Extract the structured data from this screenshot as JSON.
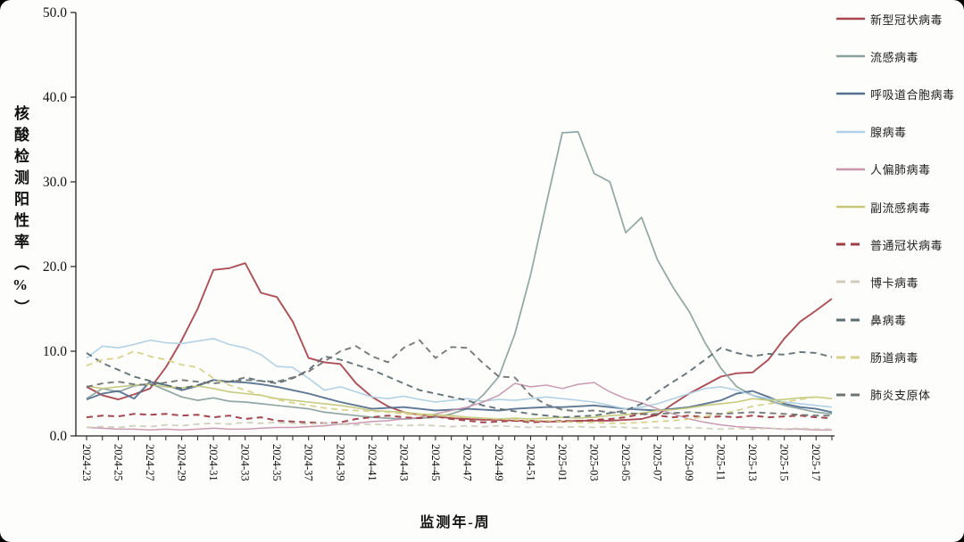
{
  "page": {
    "background": "#fdfdfb"
  },
  "y_axis": {
    "title": "核酸检测阳性率（%）"
  },
  "x_axis": {
    "title": "监测年-周",
    "label_every": 2
  },
  "chart_data": {
    "type": "line",
    "title": "",
    "xlabel": "监测年-周",
    "ylabel": "核酸检测阳性率（%）",
    "ylim": [
      0,
      50
    ],
    "yticks": [
      0,
      10,
      20,
      30,
      40,
      50
    ],
    "grid": false,
    "legend_position": "right",
    "x": [
      "2024-23",
      "2024-24",
      "2024-25",
      "2024-26",
      "2024-27",
      "2024-28",
      "2024-29",
      "2024-30",
      "2024-31",
      "2024-32",
      "2024-33",
      "2024-34",
      "2024-35",
      "2024-36",
      "2024-37",
      "2024-38",
      "2024-39",
      "2024-40",
      "2024-41",
      "2024-42",
      "2024-43",
      "2024-44",
      "2024-45",
      "2024-46",
      "2024-47",
      "2024-48",
      "2024-49",
      "2024-50",
      "2024-51",
      "2024-52",
      "2025-01",
      "2025-02",
      "2025-03",
      "2025-04",
      "2025-05",
      "2025-06",
      "2025-07",
      "2025-08",
      "2025-09",
      "2025-10",
      "2025-11",
      "2025-12",
      "2025-13",
      "2025-14",
      "2025-15",
      "2025-16",
      "2025-17",
      "2025-18"
    ],
    "series": [
      {
        "name": "新型冠状病毒",
        "color": "#a8474f",
        "dash": false,
        "width": 1.9,
        "values": [
          5.8,
          4.8,
          4.3,
          4.9,
          5.6,
          8.1,
          11.3,
          15.0,
          19.6,
          19.8,
          20.4,
          16.9,
          16.4,
          13.5,
          9.2,
          8.7,
          8.5,
          6.2,
          4.6,
          3.5,
          2.8,
          2.5,
          2.3,
          2.1,
          2.0,
          1.9,
          1.9,
          1.8,
          1.8,
          1.7,
          1.7,
          1.8,
          1.8,
          1.8,
          1.9,
          2.0,
          2.5,
          3.8,
          5.0,
          6.0,
          7.0,
          7.4,
          7.5,
          9.0,
          11.5,
          13.5,
          14.8,
          16.2
        ]
      },
      {
        "name": "流感病毒",
        "color": "#8aa29e",
        "dash": false,
        "width": 1.7,
        "values": [
          4.4,
          5.6,
          5.2,
          5.9,
          6.2,
          5.4,
          4.6,
          4.2,
          4.5,
          4.1,
          4.0,
          3.8,
          3.6,
          3.4,
          3.2,
          2.8,
          2.6,
          2.4,
          2.2,
          2.1,
          2.0,
          2.1,
          2.2,
          2.6,
          3.2,
          4.8,
          7.0,
          12.0,
          19.0,
          27.5,
          35.8,
          35.9,
          31.0,
          30.0,
          24.0,
          25.8,
          20.8,
          17.5,
          14.7,
          11.0,
          8.0,
          5.8,
          4.8,
          4.2,
          3.6,
          3.2,
          2.8,
          2.6
        ]
      },
      {
        "name": "呼吸道合胞病毒",
        "color": "#55708e",
        "dash": false,
        "width": 1.9,
        "values": [
          4.3,
          5.0,
          5.3,
          4.4,
          6.4,
          6.0,
          5.4,
          5.9,
          6.6,
          6.4,
          6.3,
          6.1,
          5.8,
          5.4,
          5.0,
          4.5,
          4.0,
          3.6,
          3.2,
          3.3,
          3.4,
          3.2,
          3.0,
          3.1,
          3.2,
          3.1,
          3.0,
          3.2,
          3.3,
          3.4,
          3.4,
          3.5,
          3.6,
          3.4,
          3.2,
          3.1,
          3.0,
          3.2,
          3.4,
          3.8,
          4.2,
          5.0,
          5.3,
          4.6,
          3.8,
          3.4,
          3.2,
          2.8
        ]
      },
      {
        "name": "腺病毒",
        "color": "#afcfe3",
        "dash": false,
        "width": 1.6,
        "values": [
          9.2,
          10.6,
          10.4,
          10.8,
          11.3,
          11.0,
          10.9,
          11.2,
          11.5,
          10.8,
          10.4,
          9.6,
          8.2,
          8.1,
          6.8,
          5.4,
          5.8,
          5.2,
          4.6,
          4.4,
          4.7,
          4.3,
          4.0,
          4.2,
          4.4,
          4.1,
          4.3,
          4.2,
          4.4,
          4.6,
          4.4,
          4.2,
          4.0,
          3.6,
          3.2,
          3.4,
          3.8,
          4.4,
          5.0,
          5.6,
          5.8,
          5.4,
          4.8,
          4.4,
          4.0,
          3.8,
          3.6,
          3.4
        ]
      },
      {
        "name": "人偏肺病毒",
        "color": "#c795ae",
        "dash": false,
        "width": 1.5,
        "values": [
          1.0,
          0.9,
          0.8,
          0.8,
          0.7,
          0.8,
          0.7,
          0.8,
          0.9,
          0.8,
          0.8,
          0.9,
          1.0,
          1.0,
          1.1,
          1.2,
          1.4,
          1.5,
          1.7,
          1.8,
          2.0,
          2.2,
          2.6,
          3.0,
          3.4,
          4.0,
          4.8,
          6.2,
          5.8,
          6.0,
          5.6,
          6.1,
          6.3,
          5.2,
          4.4,
          3.9,
          3.2,
          2.6,
          2.0,
          1.6,
          1.3,
          1.1,
          1.0,
          0.9,
          0.8,
          0.8,
          0.7,
          0.7
        ]
      },
      {
        "name": "副流感病毒",
        "color": "#c3c87b",
        "dash": false,
        "width": 1.6,
        "values": [
          5.9,
          5.6,
          5.8,
          6.0,
          6.1,
          5.8,
          5.7,
          5.9,
          5.6,
          5.2,
          5.0,
          4.8,
          4.4,
          4.2,
          4.0,
          3.8,
          3.6,
          3.3,
          3.0,
          2.9,
          2.8,
          2.6,
          2.5,
          2.4,
          2.2,
          2.1,
          2.0,
          2.1,
          2.0,
          2.1,
          2.2,
          2.1,
          2.2,
          2.4,
          2.5,
          2.7,
          3.0,
          3.1,
          3.3,
          3.6,
          3.8,
          4.0,
          4.4,
          4.2,
          4.3,
          4.5,
          4.6,
          4.4
        ]
      },
      {
        "name": "普通冠状病毒",
        "color": "#9e3d46",
        "dash": true,
        "width": 2.0,
        "values": [
          2.2,
          2.4,
          2.3,
          2.6,
          2.5,
          2.6,
          2.4,
          2.5,
          2.2,
          2.4,
          2.0,
          2.2,
          1.8,
          1.7,
          1.6,
          1.5,
          1.6,
          2.0,
          2.2,
          2.4,
          2.2,
          2.1,
          2.3,
          2.0,
          1.8,
          1.6,
          1.7,
          1.8,
          1.6,
          1.7,
          1.8,
          1.7,
          1.9,
          2.0,
          2.2,
          2.6,
          2.4,
          2.2,
          2.4,
          2.2,
          2.3,
          2.2,
          2.4,
          2.2,
          2.3,
          2.4,
          2.2,
          2.1
        ]
      },
      {
        "name": "博卡病毒",
        "color": "#cfccbc",
        "dash": true,
        "width": 1.8,
        "values": [
          1.0,
          1.1,
          1.0,
          1.2,
          1.1,
          1.3,
          1.2,
          1.4,
          1.5,
          1.4,
          1.6,
          1.5,
          1.6,
          1.5,
          1.4,
          1.5,
          1.4,
          1.3,
          1.4,
          1.3,
          1.2,
          1.3,
          1.2,
          1.1,
          1.2,
          1.1,
          1.2,
          1.1,
          1.0,
          1.1,
          1.0,
          1.1,
          1.0,
          1.1,
          1.0,
          0.9,
          1.0,
          0.9,
          1.0,
          0.9,
          0.8,
          0.9,
          0.8,
          0.9,
          0.8,
          0.9,
          0.8,
          0.8
        ]
      },
      {
        "name": "鼻病毒",
        "color": "#5d6e72",
        "dash": true,
        "width": 1.9,
        "values": [
          9.8,
          8.6,
          7.8,
          7.0,
          6.5,
          6.0,
          5.6,
          6.0,
          6.6,
          6.4,
          6.9,
          6.5,
          6.2,
          6.8,
          7.8,
          9.4,
          9.0,
          8.4,
          7.8,
          7.0,
          6.2,
          5.4,
          5.0,
          4.6,
          4.2,
          3.6,
          3.2,
          2.9,
          2.6,
          2.4,
          2.2,
          2.3,
          2.4,
          2.7,
          3.0,
          3.8,
          5.2,
          6.4,
          7.6,
          9.0,
          10.4,
          9.8,
          9.4,
          9.7,
          9.6,
          9.9,
          9.8,
          9.3
        ]
      },
      {
        "name": "肠道病毒",
        "color": "#d5d188",
        "dash": true,
        "width": 1.8,
        "values": [
          8.3,
          9.0,
          9.2,
          10.0,
          9.4,
          9.0,
          8.4,
          8.1,
          6.8,
          6.0,
          5.4,
          4.8,
          4.3,
          3.9,
          3.6,
          3.3,
          3.1,
          3.0,
          2.9,
          2.8,
          2.6,
          2.5,
          2.4,
          2.3,
          2.2,
          2.1,
          2.0,
          1.9,
          1.8,
          1.8,
          1.7,
          1.6,
          1.6,
          1.5,
          1.5,
          1.6,
          1.7,
          1.8,
          2.0,
          2.3,
          2.6,
          3.0,
          3.5,
          3.8,
          4.0,
          4.3,
          4.6,
          4.4
        ]
      },
      {
        "name": "肺炎支原体",
        "color": "#6f7475",
        "dash": true,
        "width": 1.9,
        "values": [
          5.8,
          6.2,
          6.4,
          6.1,
          6.0,
          6.3,
          6.6,
          6.4,
          6.2,
          6.4,
          6.6,
          6.5,
          6.4,
          6.9,
          7.6,
          8.8,
          10.0,
          10.6,
          9.4,
          8.7,
          10.4,
          11.3,
          9.2,
          10.5,
          10.4,
          8.6,
          7.0,
          6.9,
          4.8,
          3.7,
          3.1,
          2.9,
          3.0,
          2.8,
          2.7,
          2.6,
          2.6,
          2.7,
          2.8,
          2.7,
          2.6,
          2.7,
          2.8,
          2.7,
          2.6,
          2.5,
          2.4,
          2.4
        ]
      }
    ]
  }
}
